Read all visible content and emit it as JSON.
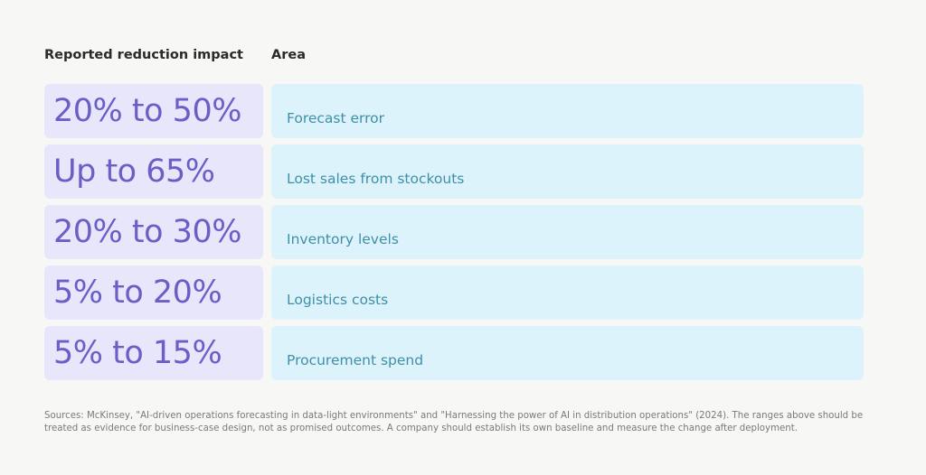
{
  "headers": {
    "impact": "Reported reduction impact",
    "area": "Area"
  },
  "rows": [
    {
      "impact": "20% to 50%",
      "area": "Forecast error"
    },
    {
      "impact": "Up to 65%",
      "area": "Lost sales from stockouts"
    },
    {
      "impact": "20% to 30%",
      "area": "Inventory levels"
    },
    {
      "impact": "5% to 20%",
      "area": "Logistics costs"
    },
    {
      "impact": "5% to 15%",
      "area": "Procurement spend"
    }
  ],
  "sources": "Sources: McKinsey, \"AI-driven operations forecasting in data-light environments\" and \"Harnessing the power of AI in distribution operations\" (2024). The ranges above should be treated as evidence for business-case design, not as promised outcomes. A company should establish its own baseline and measure the change after deployment.",
  "colors": {
    "background": "#f7f7f5",
    "impact_cell": "#e8e6fb",
    "impact_text": "#6a5fc6",
    "area_cell": "#dcf3fb",
    "area_text": "#3f8fa8"
  }
}
